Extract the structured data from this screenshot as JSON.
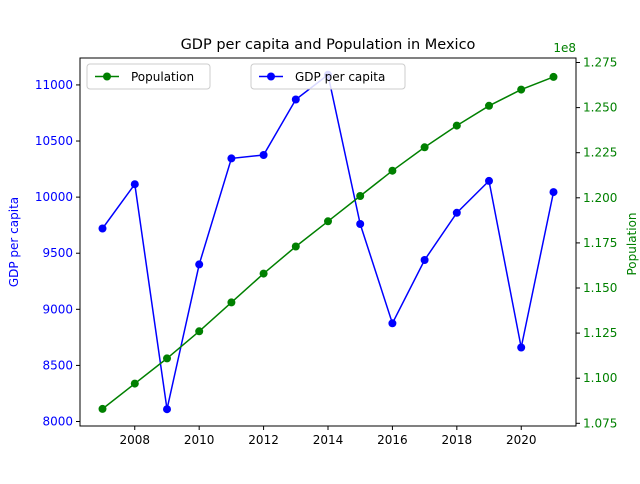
{
  "chart_data": {
    "type": "line",
    "title": "GDP per capita and Population in Mexico",
    "x": [
      2007,
      2008,
      2009,
      2010,
      2011,
      2012,
      2013,
      2014,
      2015,
      2016,
      2017,
      2018,
      2019,
      2020,
      2021
    ],
    "xticks": [
      "2008",
      "2010",
      "2012",
      "2014",
      "2016",
      "2018",
      "2020"
    ],
    "xlim": [
      2006.3,
      2021.7
    ],
    "y_left": {
      "label": "GDP per capita",
      "color": "#0000ff",
      "ylim": [
        7960,
        11240
      ],
      "ticks": [
        "8000",
        "8500",
        "9000",
        "9500",
        "10000",
        "10500",
        "11000"
      ]
    },
    "y_right": {
      "label": "Population",
      "color": "#008000",
      "multiplier": "1e8",
      "ylim": [
        1.0735,
        1.2775
      ],
      "ticks": [
        "1.075",
        "1.100",
        "1.125",
        "1.150",
        "1.175",
        "1.200",
        "1.225",
        "1.250",
        "1.275"
      ]
    },
    "series": [
      {
        "name": "GDP per capita",
        "axis": "left",
        "color": "#0000ff",
        "values": [
          9720,
          10115,
          8110,
          9400,
          10345,
          10375,
          10870,
          11090,
          9760,
          8875,
          9440,
          9860,
          10145,
          8660,
          10045
        ]
      },
      {
        "name": "Population",
        "axis": "right",
        "color": "#008000",
        "values": [
          1.083,
          1.097,
          1.111,
          1.126,
          1.142,
          1.158,
          1.173,
          1.187,
          1.201,
          1.215,
          1.228,
          1.24,
          1.251,
          1.26,
          1.267
        ]
      }
    ],
    "grid": false,
    "legends": [
      {
        "entry": "Population",
        "placement": "upper-left"
      },
      {
        "entry": "GDP per capita",
        "placement": "upper-center"
      }
    ]
  }
}
